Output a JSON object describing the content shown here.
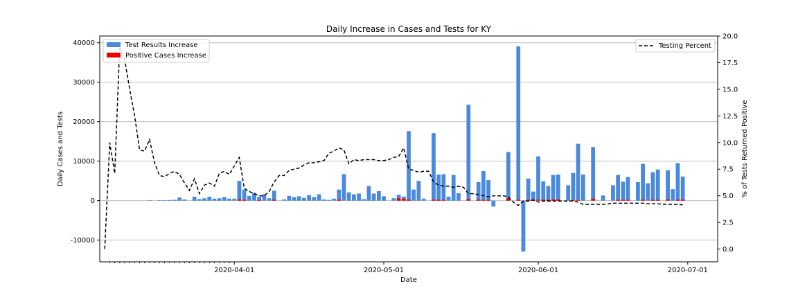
{
  "chart_data": {
    "type": "bar",
    "title": "Daily Increase in Cases and Tests for KY",
    "xlabel": "Date",
    "ylabel": "Daily Cases and Tests",
    "y2label": "% of Tests Returned Positive",
    "xlim": [
      "2020-03-05",
      "2020-07-07"
    ],
    "ylim": [
      -15500,
      41700
    ],
    "y2lim": [
      -1.2,
      20.0
    ],
    "x_ticks": [
      "2020-04-01",
      "2020-05-01",
      "2020-06-01",
      "2020-07-01"
    ],
    "y_ticks": [
      "-10000",
      "0",
      "10000",
      "20000",
      "30000",
      "40000"
    ],
    "y2_ticks": [
      "0.0",
      "2.5",
      "5.0",
      "7.5",
      "10.0",
      "12.5",
      "15.0",
      "17.5",
      "20.0"
    ],
    "grid": "horizontal",
    "legend_left": "top-left",
    "legend_right": "top-right",
    "bar_series": [
      {
        "name": "Test Results Increase",
        "color": "#4a89dc",
        "points": [
          [
            "2020-03-15",
            100
          ],
          [
            "2020-03-17",
            50
          ],
          [
            "2020-03-18",
            100
          ],
          [
            "2020-03-19",
            150
          ],
          [
            "2020-03-20",
            200
          ],
          [
            "2020-03-21",
            800
          ],
          [
            "2020-03-22",
            300
          ],
          [
            "2020-03-24",
            1000
          ],
          [
            "2020-03-25",
            400
          ],
          [
            "2020-03-26",
            600
          ],
          [
            "2020-03-27",
            1000
          ],
          [
            "2020-03-28",
            500
          ],
          [
            "2020-03-29",
            600
          ],
          [
            "2020-03-30",
            900
          ],
          [
            "2020-03-31",
            500
          ],
          [
            "2020-04-01",
            500
          ],
          [
            "2020-04-02",
            5000
          ],
          [
            "2020-04-03",
            2800
          ],
          [
            "2020-04-04",
            1200
          ],
          [
            "2020-04-05",
            2000
          ],
          [
            "2020-04-06",
            1000
          ],
          [
            "2020-04-07",
            1600
          ],
          [
            "2020-04-08",
            600
          ],
          [
            "2020-04-09",
            2500
          ],
          [
            "2020-04-11",
            300
          ],
          [
            "2020-04-12",
            1200
          ],
          [
            "2020-04-13",
            900
          ],
          [
            "2020-04-14",
            1100
          ],
          [
            "2020-04-15",
            700
          ],
          [
            "2020-04-16",
            1400
          ],
          [
            "2020-04-17",
            900
          ],
          [
            "2020-04-18",
            1600
          ],
          [
            "2020-04-19",
            300
          ],
          [
            "2020-04-20",
            200
          ],
          [
            "2020-04-21",
            500
          ],
          [
            "2020-04-22",
            2800
          ],
          [
            "2020-04-23",
            6700
          ],
          [
            "2020-04-24",
            2100
          ],
          [
            "2020-04-25",
            1600
          ],
          [
            "2020-04-26",
            1800
          ],
          [
            "2020-04-27",
            400
          ],
          [
            "2020-04-28",
            3700
          ],
          [
            "2020-04-29",
            1800
          ],
          [
            "2020-04-30",
            2400
          ],
          [
            "2020-05-01",
            1100
          ],
          [
            "2020-05-03",
            600
          ],
          [
            "2020-05-04",
            1500
          ],
          [
            "2020-05-05",
            1000
          ],
          [
            "2020-05-06",
            17600
          ],
          [
            "2020-05-07",
            2800
          ],
          [
            "2020-05-08",
            5000
          ],
          [
            "2020-05-09",
            500
          ],
          [
            "2020-05-11",
            17100
          ],
          [
            "2020-05-12",
            6600
          ],
          [
            "2020-05-13",
            6700
          ],
          [
            "2020-05-14",
            1000
          ],
          [
            "2020-05-15",
            6500
          ],
          [
            "2020-05-16",
            1900
          ],
          [
            "2020-05-18",
            24300
          ],
          [
            "2020-05-20",
            4700
          ],
          [
            "2020-05-21",
            7500
          ],
          [
            "2020-05-22",
            5200
          ],
          [
            "2020-05-23",
            -1500
          ],
          [
            "2020-05-26",
            12300
          ],
          [
            "2020-05-28",
            39100
          ],
          [
            "2020-05-29",
            -12900
          ],
          [
            "2020-05-30",
            5600
          ],
          [
            "2020-05-31",
            2300
          ],
          [
            "2020-06-01",
            11200
          ],
          [
            "2020-06-02",
            4900
          ],
          [
            "2020-06-03",
            3700
          ],
          [
            "2020-06-04",
            6500
          ],
          [
            "2020-06-05",
            6600
          ],
          [
            "2020-06-07",
            3900
          ],
          [
            "2020-06-08",
            7000
          ],
          [
            "2020-06-09",
            14400
          ],
          [
            "2020-06-10",
            6600
          ],
          [
            "2020-06-12",
            13600
          ],
          [
            "2020-06-14",
            1300
          ],
          [
            "2020-06-16",
            3900
          ],
          [
            "2020-06-17",
            6500
          ],
          [
            "2020-06-18",
            4800
          ],
          [
            "2020-06-19",
            6000
          ],
          [
            "2020-06-21",
            4700
          ],
          [
            "2020-06-22",
            9300
          ],
          [
            "2020-06-23",
            4400
          ],
          [
            "2020-06-24",
            7200
          ],
          [
            "2020-06-25",
            7900
          ],
          [
            "2020-06-27",
            7700
          ],
          [
            "2020-06-28",
            2900
          ],
          [
            "2020-06-29",
            9500
          ],
          [
            "2020-06-30",
            6100
          ]
        ]
      },
      {
        "name": "Positive Cases Increase",
        "color": "#ee0000",
        "points": [
          [
            "2020-04-02",
            300
          ],
          [
            "2020-04-03",
            200
          ],
          [
            "2020-04-06",
            150
          ],
          [
            "2020-04-09",
            200
          ],
          [
            "2020-04-22",
            250
          ],
          [
            "2020-05-04",
            600
          ],
          [
            "2020-05-05",
            500
          ],
          [
            "2020-05-06",
            250
          ],
          [
            "2020-05-11",
            250
          ],
          [
            "2020-05-12",
            200
          ],
          [
            "2020-05-13",
            200
          ],
          [
            "2020-05-18",
            400
          ],
          [
            "2020-05-20",
            250
          ],
          [
            "2020-05-21",
            200
          ],
          [
            "2020-05-22",
            200
          ],
          [
            "2020-05-26",
            600
          ],
          [
            "2020-05-28",
            200
          ],
          [
            "2020-05-30",
            200
          ],
          [
            "2020-05-31",
            250
          ],
          [
            "2020-06-01",
            250
          ],
          [
            "2020-06-02",
            200
          ],
          [
            "2020-06-03",
            200
          ],
          [
            "2020-06-04",
            300
          ],
          [
            "2020-06-05",
            300
          ],
          [
            "2020-06-08",
            150
          ],
          [
            "2020-06-09",
            150
          ],
          [
            "2020-06-12",
            500
          ],
          [
            "2020-06-17",
            200
          ],
          [
            "2020-06-18",
            200
          ],
          [
            "2020-06-19",
            200
          ],
          [
            "2020-06-22",
            250
          ],
          [
            "2020-06-24",
            200
          ],
          [
            "2020-06-25",
            200
          ],
          [
            "2020-06-27",
            300
          ],
          [
            "2020-06-29",
            250
          ],
          [
            "2020-06-30",
            250
          ]
        ]
      }
    ],
    "line_series": {
      "name": "Testing Percent",
      "color": "#000000",
      "style": "dashed",
      "points": [
        [
          "2020-03-06",
          0.0
        ],
        [
          "2020-03-07",
          10.0
        ],
        [
          "2020-03-08",
          7.1
        ],
        [
          "2020-03-09",
          19.0
        ],
        [
          "2020-03-10",
          17.8
        ],
        [
          "2020-03-11",
          15.0
        ],
        [
          "2020-03-12",
          12.5
        ],
        [
          "2020-03-13",
          9.3
        ],
        [
          "2020-03-14",
          9.2
        ],
        [
          "2020-03-15",
          10.3
        ],
        [
          "2020-03-16",
          8.1
        ],
        [
          "2020-03-17",
          6.9
        ],
        [
          "2020-03-18",
          6.8
        ],
        [
          "2020-03-19",
          7.1
        ],
        [
          "2020-03-20",
          7.3
        ],
        [
          "2020-03-21",
          7.0
        ],
        [
          "2020-03-22",
          6.2
        ],
        [
          "2020-03-23",
          5.5
        ],
        [
          "2020-03-24",
          6.6
        ],
        [
          "2020-03-25",
          5.2
        ],
        [
          "2020-03-26",
          6.0
        ],
        [
          "2020-03-27",
          6.2
        ],
        [
          "2020-03-28",
          5.9
        ],
        [
          "2020-03-29",
          7.1
        ],
        [
          "2020-03-30",
          7.3
        ],
        [
          "2020-03-31",
          7.0
        ],
        [
          "2020-04-01",
          7.8
        ],
        [
          "2020-04-02",
          8.6
        ],
        [
          "2020-04-03",
          5.7
        ],
        [
          "2020-04-04",
          5.4
        ],
        [
          "2020-04-05",
          5.2
        ],
        [
          "2020-04-06",
          5.0
        ],
        [
          "2020-04-07",
          5.0
        ],
        [
          "2020-04-08",
          5.4
        ],
        [
          "2020-04-09",
          6.3
        ],
        [
          "2020-04-10",
          6.9
        ],
        [
          "2020-04-11",
          6.9
        ],
        [
          "2020-04-12",
          7.4
        ],
        [
          "2020-04-13",
          7.5
        ],
        [
          "2020-04-14",
          7.6
        ],
        [
          "2020-04-15",
          7.9
        ],
        [
          "2020-04-16",
          8.1
        ],
        [
          "2020-04-17",
          8.1
        ],
        [
          "2020-04-18",
          8.2
        ],
        [
          "2020-04-19",
          8.3
        ],
        [
          "2020-04-20",
          9.0
        ],
        [
          "2020-04-21",
          9.2
        ],
        [
          "2020-04-22",
          9.5
        ],
        [
          "2020-04-23",
          9.3
        ],
        [
          "2020-04-24",
          8.0
        ],
        [
          "2020-04-25",
          8.4
        ],
        [
          "2020-04-26",
          8.3
        ],
        [
          "2020-04-27",
          8.4
        ],
        [
          "2020-04-28",
          8.4
        ],
        [
          "2020-04-29",
          8.4
        ],
        [
          "2020-04-30",
          8.3
        ],
        [
          "2020-05-01",
          8.3
        ],
        [
          "2020-05-02",
          8.4
        ],
        [
          "2020-05-03",
          8.6
        ],
        [
          "2020-05-04",
          8.7
        ],
        [
          "2020-05-05",
          9.5
        ],
        [
          "2020-05-06",
          7.5
        ],
        [
          "2020-05-07",
          7.4
        ],
        [
          "2020-05-08",
          7.2
        ],
        [
          "2020-05-09",
          7.3
        ],
        [
          "2020-05-10",
          7.3
        ],
        [
          "2020-05-11",
          6.3
        ],
        [
          "2020-05-12",
          6.0
        ],
        [
          "2020-05-13",
          5.9
        ],
        [
          "2020-05-14",
          5.9
        ],
        [
          "2020-05-15",
          5.8
        ],
        [
          "2020-05-16",
          5.9
        ],
        [
          "2020-05-17",
          5.8
        ],
        [
          "2020-05-18",
          5.2
        ],
        [
          "2020-05-19",
          5.2
        ],
        [
          "2020-05-20",
          5.1
        ],
        [
          "2020-05-21",
          5.0
        ],
        [
          "2020-05-22",
          4.9
        ],
        [
          "2020-05-23",
          5.0
        ],
        [
          "2020-05-24",
          5.0
        ],
        [
          "2020-05-25",
          5.0
        ],
        [
          "2020-05-26",
          4.9
        ],
        [
          "2020-05-27",
          4.4
        ],
        [
          "2020-05-28",
          4.1
        ],
        [
          "2020-05-29",
          4.5
        ],
        [
          "2020-05-30",
          4.5
        ],
        [
          "2020-05-31",
          4.6
        ],
        [
          "2020-06-01",
          4.4
        ],
        [
          "2020-06-02",
          4.5
        ],
        [
          "2020-06-03",
          4.5
        ],
        [
          "2020-06-04",
          4.5
        ],
        [
          "2020-06-05",
          4.5
        ],
        [
          "2020-06-06",
          4.5
        ],
        [
          "2020-06-07",
          4.5
        ],
        [
          "2020-06-08",
          4.5
        ],
        [
          "2020-06-09",
          4.4
        ],
        [
          "2020-06-10",
          4.2
        ],
        [
          "2020-06-11",
          4.2
        ],
        [
          "2020-06-12",
          4.2
        ],
        [
          "2020-06-13",
          4.2
        ],
        [
          "2020-06-14",
          4.2
        ],
        [
          "2020-06-15",
          4.25
        ],
        [
          "2020-06-16",
          4.3
        ],
        [
          "2020-06-17",
          4.3
        ],
        [
          "2020-06-18",
          4.3
        ],
        [
          "2020-06-19",
          4.3
        ],
        [
          "2020-06-20",
          4.3
        ],
        [
          "2020-06-21",
          4.3
        ],
        [
          "2020-06-22",
          4.3
        ],
        [
          "2020-06-23",
          4.25
        ],
        [
          "2020-06-24",
          4.25
        ],
        [
          "2020-06-25",
          4.25
        ],
        [
          "2020-06-26",
          4.2
        ],
        [
          "2020-06-27",
          4.2
        ],
        [
          "2020-06-28",
          4.2
        ],
        [
          "2020-06-29",
          4.2
        ],
        [
          "2020-06-30",
          4.15
        ]
      ]
    }
  }
}
